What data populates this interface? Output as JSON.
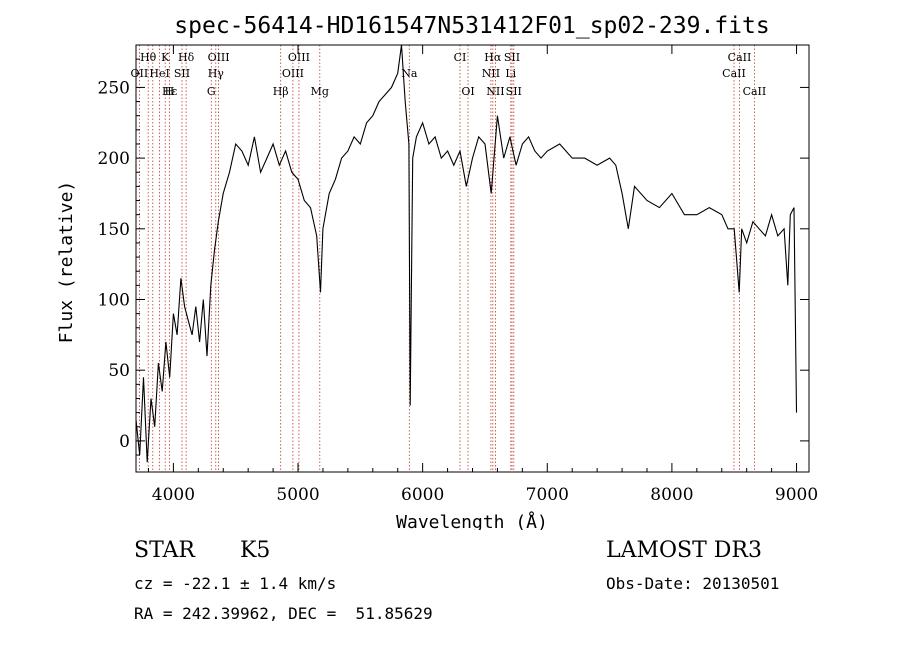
{
  "chart_data": {
    "type": "line",
    "title": "spec-56414-HD161547N531412F01_sp02-239.fits",
    "xlabel": "Wavelength (Å)",
    "ylabel": "Flux (relative)",
    "xlim": [
      3700,
      9100
    ],
    "ylim": [
      -22,
      280
    ],
    "xticks": [
      4000,
      5000,
      6000,
      7000,
      8000,
      9000
    ],
    "yticks": [
      0,
      50,
      100,
      150,
      200,
      250
    ],
    "xtick_labels": [
      "4000",
      "5000",
      "6000",
      "7000",
      "8000",
      "9000"
    ],
    "ytick_labels": [
      "0",
      "50",
      "100",
      "150",
      "200",
      "250"
    ],
    "grid": false,
    "series": [
      {
        "color": "#000000",
        "x": [
          3700,
          3730,
          3760,
          3790,
          3820,
          3850,
          3880,
          3910,
          3940,
          3970,
          4000,
          4030,
          4060,
          4090,
          4120,
          4150,
          4180,
          4210,
          4240,
          4270,
          4300,
          4330,
          4360,
          4400,
          4450,
          4500,
          4550,
          4600,
          4650,
          4700,
          4750,
          4800,
          4850,
          4900,
          4950,
          5000,
          5050,
          5100,
          5150,
          5180,
          5200,
          5250,
          5300,
          5350,
          5400,
          5450,
          5500,
          5550,
          5600,
          5650,
          5700,
          5750,
          5800,
          5830,
          5860,
          5890,
          5900,
          5920,
          5950,
          6000,
          6050,
          6100,
          6150,
          6200,
          6250,
          6300,
          6350,
          6400,
          6450,
          6500,
          6550,
          6600,
          6650,
          6700,
          6750,
          6800,
          6850,
          6900,
          6950,
          7000,
          7100,
          7200,
          7300,
          7400,
          7500,
          7550,
          7600,
          7650,
          7700,
          7800,
          7900,
          8000,
          8100,
          8200,
          8300,
          8400,
          8450,
          8500,
          8540,
          8560,
          8600,
          8650,
          8700,
          8750,
          8800,
          8850,
          8900,
          8930,
          8950,
          8980,
          9000
        ],
        "y": [
          15,
          -10,
          45,
          -15,
          30,
          10,
          55,
          35,
          70,
          45,
          90,
          75,
          115,
          95,
          85,
          75,
          95,
          70,
          100,
          60,
          110,
          135,
          155,
          175,
          190,
          210,
          205,
          195,
          215,
          190,
          200,
          210,
          195,
          205,
          190,
          185,
          170,
          165,
          145,
          105,
          150,
          175,
          185,
          200,
          205,
          215,
          210,
          225,
          230,
          240,
          245,
          250,
          260,
          280,
          240,
          210,
          25,
          200,
          215,
          225,
          210,
          215,
          200,
          205,
          195,
          205,
          180,
          200,
          215,
          210,
          175,
          230,
          200,
          215,
          195,
          210,
          215,
          205,
          200,
          205,
          210,
          200,
          200,
          195,
          200,
          195,
          175,
          150,
          180,
          170,
          165,
          175,
          160,
          160,
          165,
          160,
          150,
          150,
          105,
          150,
          140,
          155,
          150,
          145,
          160,
          145,
          150,
          110,
          160,
          165,
          20
        ]
      }
    ],
    "line_labels": [
      {
        "text": "Hθ",
        "x": 3798
      },
      {
        "text": "K",
        "x": 3934
      },
      {
        "text": "Hδ",
        "x": 4102
      },
      {
        "text": "OIII",
        "x": 4363
      },
      {
        "text": "OIII",
        "x": 5007
      },
      {
        "text": "CI",
        "x": 6300
      },
      {
        "text": "Hα",
        "x": 6563
      },
      {
        "text": "SII",
        "x": 6717
      },
      {
        "text": "CaII",
        "x": 8542
      },
      {
        "text": "OII",
        "x": 3727
      },
      {
        "text": "HeI",
        "x": 3889
      },
      {
        "text": "SII",
        "x": 4069
      },
      {
        "text": "Hγ",
        "x": 4340
      },
      {
        "text": "OIII",
        "x": 4959
      },
      {
        "text": "NII",
        "x": 6548
      },
      {
        "text": "Li",
        "x": 6707
      },
      {
        "text": "CaII",
        "x": 8498
      },
      {
        "text": "Na",
        "x": 5893
      },
      {
        "text": "Hε",
        "x": 3970
      },
      {
        "text": "H",
        "x": 3968
      },
      {
        "text": "G",
        "x": 4304
      },
      {
        "text": "Hβ",
        "x": 4861
      },
      {
        "text": "Mg",
        "x": 5175
      },
      {
        "text": "OI",
        "x": 6364
      },
      {
        "text": "NII",
        "x": 6584
      },
      {
        "text": "SII",
        "x": 6731
      },
      {
        "text": "CaII",
        "x": 8662
      }
    ],
    "line_positions": [
      3727,
      3798,
      3835,
      3889,
      3934,
      3968,
      4069,
      4102,
      4304,
      4340,
      4363,
      4861,
      4959,
      5007,
      5175,
      5893,
      6300,
      6364,
      6548,
      6563,
      6584,
      6707,
      6717,
      6731,
      8498,
      8542,
      8662
    ]
  },
  "info": {
    "object_class": "STAR",
    "subclass": "K5",
    "survey": "LAMOST DR3",
    "velocity": "cz = -22.1 ± 1.4 km/s",
    "obs_date": "Obs-Date: 20130501",
    "coords": "RA = 242.39962, DEC =  51.85629"
  }
}
